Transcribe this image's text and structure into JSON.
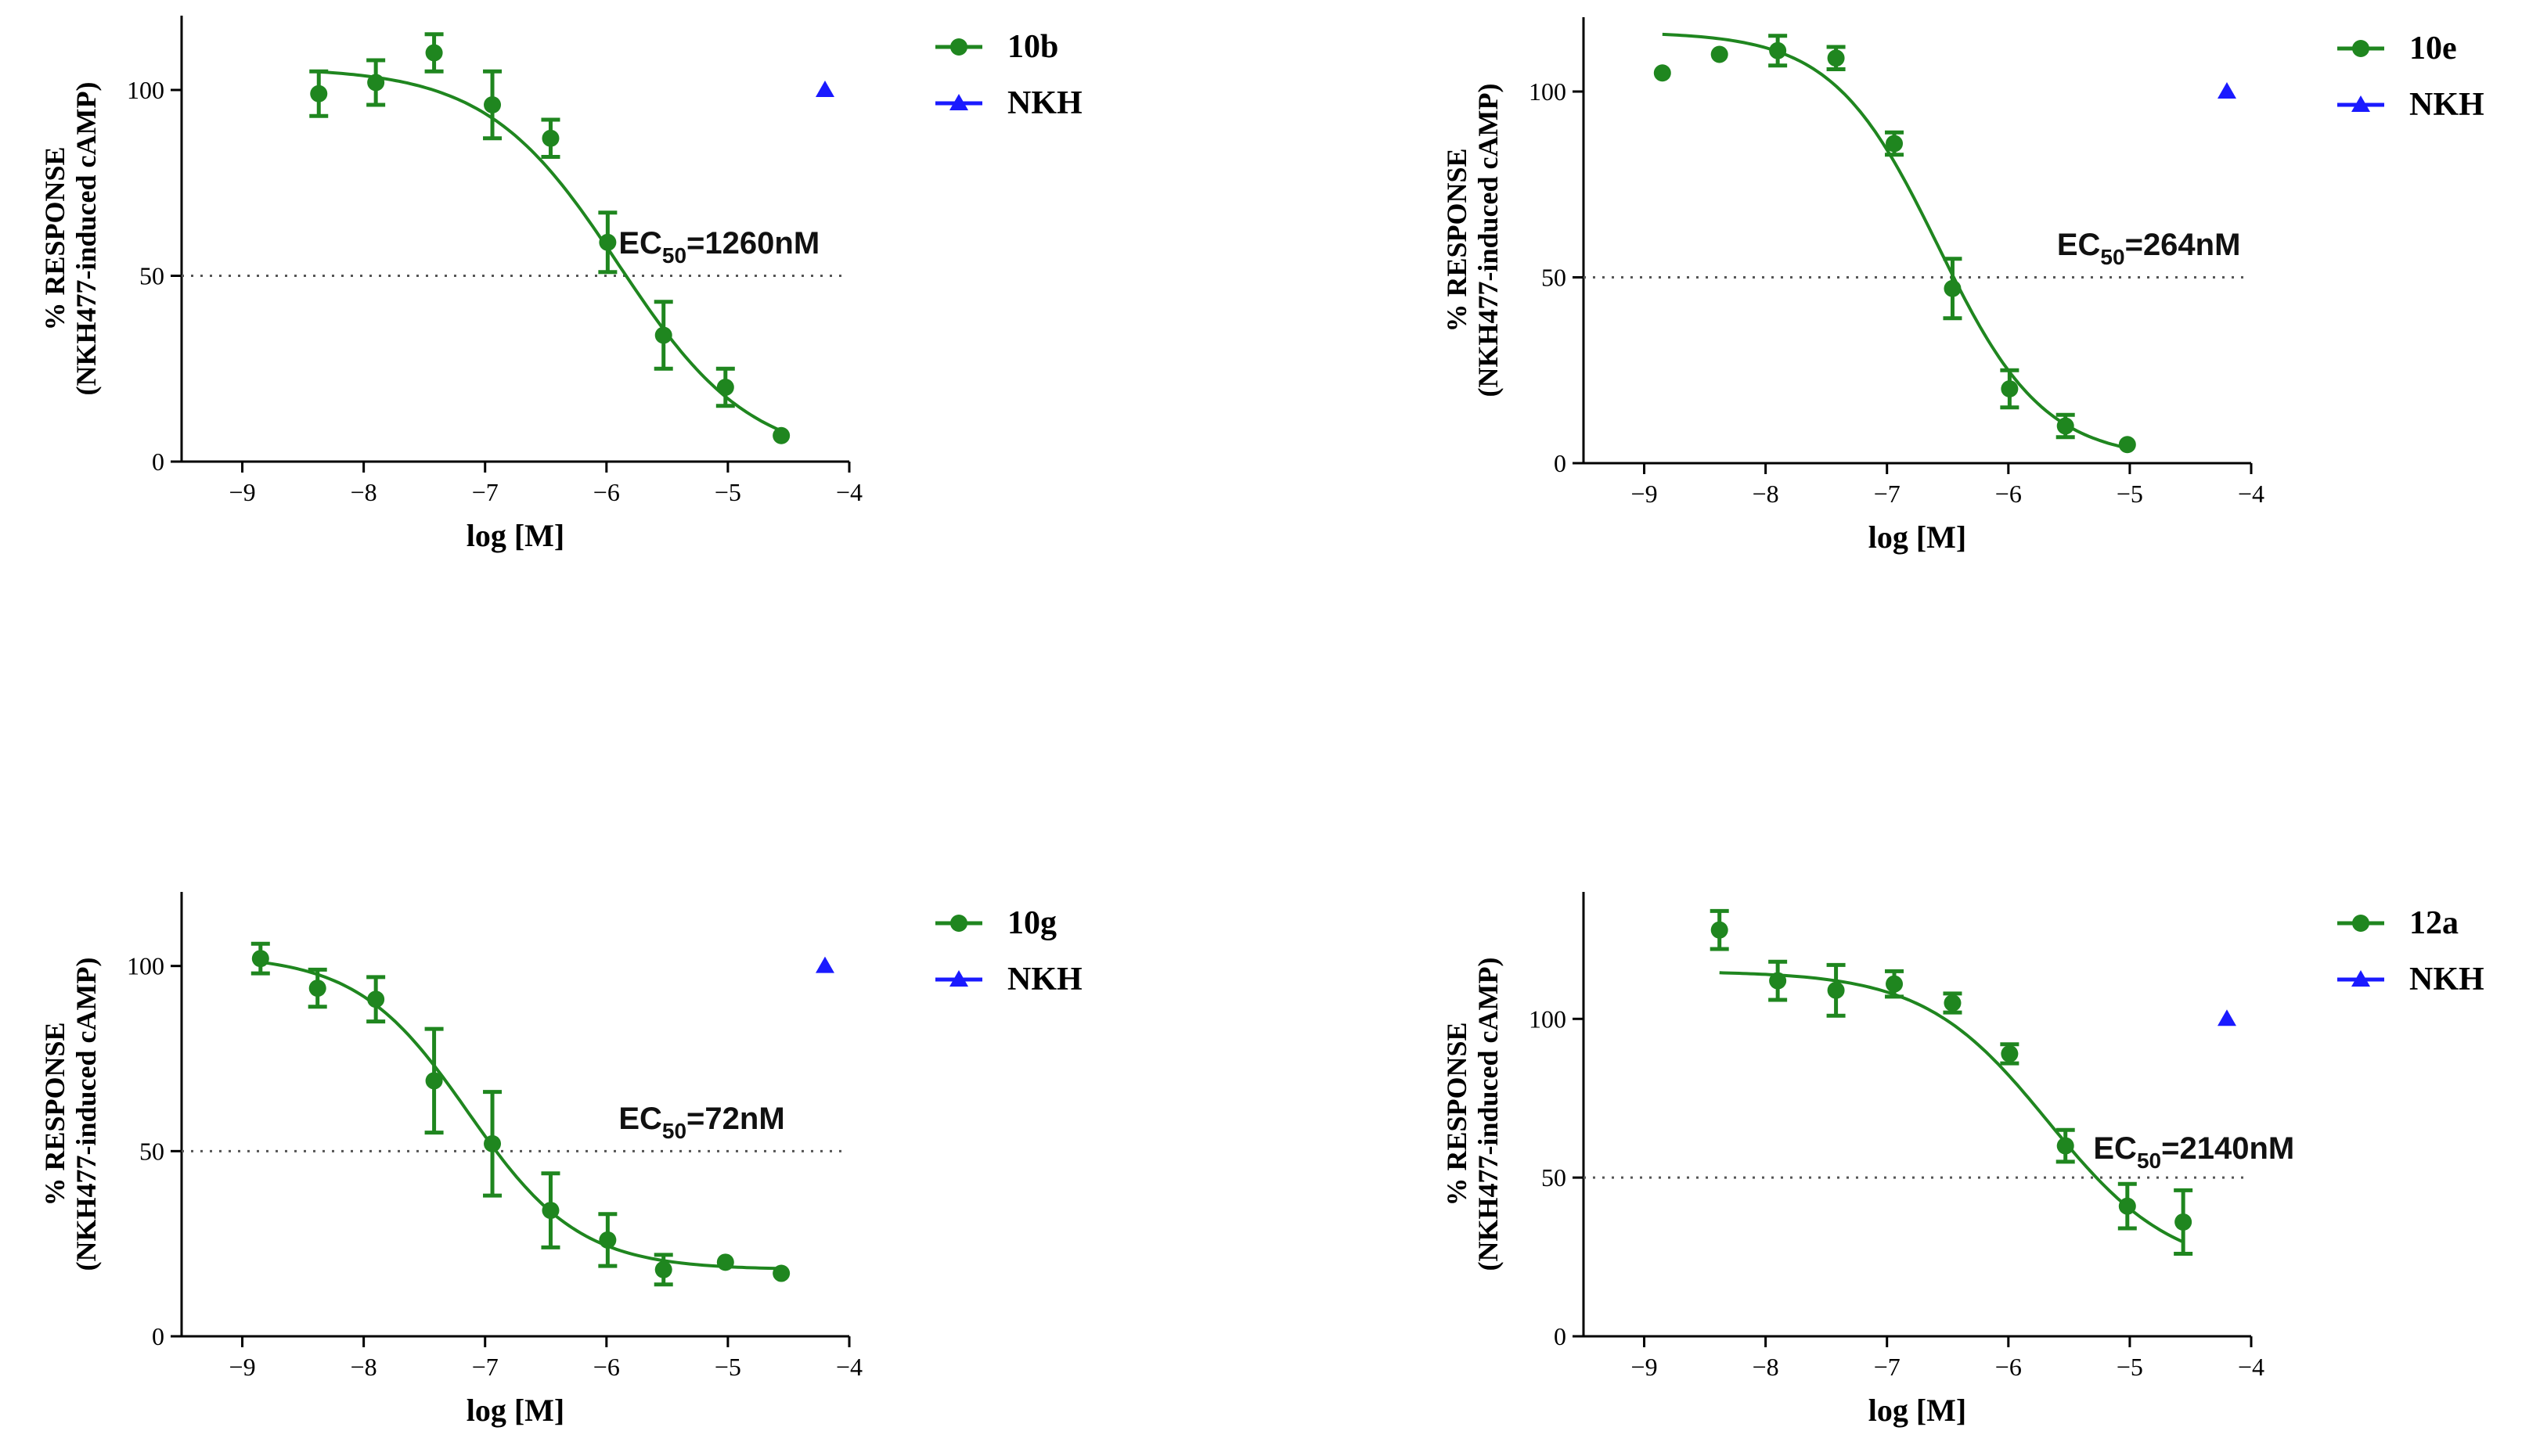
{
  "figure": {
    "colors": {
      "compound": "#1f861f",
      "reference": "#1a1aff",
      "axis": "#000000",
      "dotted": "#555555"
    }
  },
  "chart_data": [
    {
      "type": "scatter",
      "panel": "top-left",
      "xlabel": "log [M]",
      "ylabel_line1": "% RESPONSE",
      "ylabel_line2": "(NKH477-induced cAMP)",
      "xlim": [
        -9.5,
        -4
      ],
      "ylim": [
        0,
        120
      ],
      "xticks": [
        -9,
        -8,
        -7,
        -6,
        -5,
        -4
      ],
      "yticks": [
        0,
        50,
        100
      ],
      "reference_line": 50,
      "ec50_label_main": "EC",
      "ec50_label_sub": "50",
      "ec50_label_value": "=1260nM",
      "ec50_anchor": [
        -5.9,
        56
      ],
      "legend": {
        "placement": "top-right",
        "entries": [
          "10b",
          "NKH"
        ]
      },
      "series": [
        {
          "name": "10b",
          "marker": "circle",
          "x": [
            -8.37,
            -7.9,
            -7.42,
            -6.94,
            -6.46,
            -5.99,
            -5.53,
            -5.02,
            -4.56
          ],
          "y": [
            99,
            102,
            110,
            96,
            87,
            59,
            34,
            20,
            7
          ],
          "err": [
            6,
            6,
            5,
            9,
            5,
            8,
            9,
            5,
            0
          ],
          "fit": {
            "top": 106,
            "bottom": 0,
            "logec50": -5.9,
            "hill": -0.8,
            "xrange": [
              -8.37,
              -4.56
            ]
          }
        },
        {
          "name": "NKH",
          "marker": "triangle",
          "x": [
            -4.2
          ],
          "y": [
            100
          ]
        }
      ]
    },
    {
      "type": "scatter",
      "panel": "top-right",
      "xlabel": "log [M]",
      "ylabel_line1": "% RESPONSE",
      "ylabel_line2": "(NKH477-induced cAMP)",
      "xlim": [
        -9.5,
        -4
      ],
      "ylim": [
        0,
        120
      ],
      "xticks": [
        -9,
        -8,
        -7,
        -6,
        -5,
        -4
      ],
      "yticks": [
        0,
        50,
        100
      ],
      "reference_line": 50,
      "ec50_label_main": "EC",
      "ec50_label_sub": "50",
      "ec50_label_value": "=264nM",
      "ec50_anchor": [
        -5.6,
        56
      ],
      "legend": {
        "placement": "top-right",
        "entries": [
          "10e",
          "NKH"
        ]
      },
      "series": [
        {
          "name": "10e",
          "marker": "circle",
          "x": [
            -8.85,
            -8.38,
            -7.9,
            -7.42,
            -6.94,
            -6.46,
            -5.99,
            -5.53,
            -5.02
          ],
          "y": [
            105,
            110,
            111,
            109,
            86,
            47,
            20,
            10,
            5
          ],
          "err": [
            0,
            0,
            4,
            3,
            3,
            8,
            5,
            3,
            0
          ],
          "fit": {
            "top": 116,
            "bottom": 1,
            "logec50": -6.58,
            "hill": -1.0,
            "xrange": [
              -8.85,
              -5.02
            ]
          }
        },
        {
          "name": "NKH",
          "marker": "triangle",
          "x": [
            -4.2
          ],
          "y": [
            100
          ]
        }
      ]
    },
    {
      "type": "scatter",
      "panel": "bottom-left",
      "xlabel": "log [M]",
      "ylabel_line1": "% RESPONSE",
      "ylabel_line2": "(NKH477-induced cAMP)",
      "xlim": [
        -9.5,
        -4
      ],
      "ylim": [
        0,
        120
      ],
      "xticks": [
        -9,
        -8,
        -7,
        -6,
        -5,
        -4
      ],
      "yticks": [
        0,
        50,
        100
      ],
      "reference_line": 50,
      "ec50_label_main": "EC",
      "ec50_label_sub": "50",
      "ec50_label_value": "=72nM",
      "ec50_anchor": [
        -5.9,
        56
      ],
      "legend": {
        "placement": "top-right",
        "entries": [
          "10g",
          "NKH"
        ]
      },
      "series": [
        {
          "name": "10g",
          "marker": "circle",
          "x": [
            -8.85,
            -8.38,
            -7.9,
            -7.42,
            -6.94,
            -6.46,
            -5.99,
            -5.53,
            -5.02,
            -4.56
          ],
          "y": [
            102,
            94,
            91,
            69,
            52,
            34,
            26,
            18,
            20,
            17
          ],
          "err": [
            4,
            5,
            6,
            14,
            14,
            10,
            7,
            4,
            0,
            0
          ],
          "fit": {
            "top": 103,
            "bottom": 18,
            "logec50": -7.14,
            "hill": -0.95,
            "xrange": [
              -8.85,
              -4.56
            ]
          }
        },
        {
          "name": "NKH",
          "marker": "triangle",
          "x": [
            -4.2
          ],
          "y": [
            100
          ]
        }
      ]
    },
    {
      "type": "scatter",
      "panel": "bottom-right",
      "xlabel": "log [M]",
      "ylabel_line1": "% RESPONSE",
      "ylabel_line2": "(NKH477-induced cAMP)",
      "xlim": [
        -9.5,
        -4
      ],
      "ylim": [
        0,
        140
      ],
      "xticks": [
        -9,
        -8,
        -7,
        -6,
        -5,
        -4
      ],
      "yticks": [
        0,
        50,
        100
      ],
      "reference_line": 50,
      "ec50_label_main": "EC",
      "ec50_label_sub": "50",
      "ec50_label_value": "=2140nM",
      "ec50_anchor": [
        -5.3,
        56
      ],
      "legend": {
        "placement": "top-right",
        "entries": [
          "12a",
          "NKH"
        ]
      },
      "series": [
        {
          "name": "12a",
          "marker": "circle",
          "x": [
            -8.38,
            -7.9,
            -7.42,
            -6.94,
            -6.46,
            -5.99,
            -5.53,
            -5.02,
            -4.56
          ],
          "y": [
            128,
            112,
            109,
            111,
            105,
            89,
            60,
            41,
            36
          ],
          "err": [
            6,
            6,
            8,
            4,
            3,
            3,
            5,
            7,
            10
          ],
          "fit": {
            "top": 115,
            "bottom": 20,
            "logec50": -5.67,
            "hill": -0.85,
            "xrange": [
              -8.38,
              -4.56
            ]
          }
        },
        {
          "name": "NKH",
          "marker": "triangle",
          "x": [
            -4.2
          ],
          "y": [
            100
          ]
        }
      ]
    }
  ]
}
